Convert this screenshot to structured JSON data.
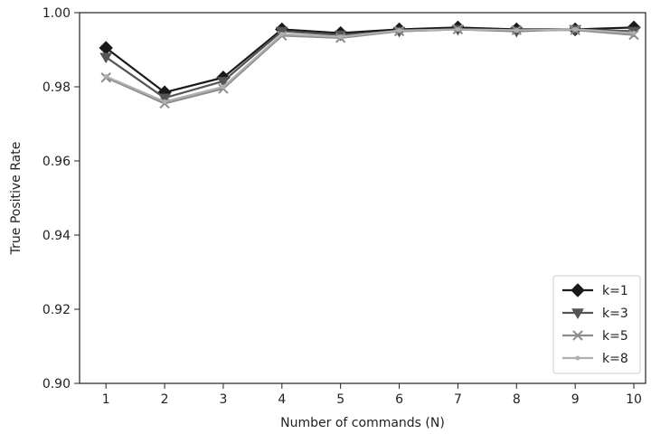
{
  "chart_data": {
    "type": "line",
    "title": "",
    "xlabel": "Number of commands (N)",
    "ylabel": "True Positive Rate",
    "x": [
      1,
      2,
      3,
      4,
      5,
      6,
      7,
      8,
      9,
      10
    ],
    "xlim": [
      0.55,
      10.2
    ],
    "ylim": [
      0.9,
      1.0
    ],
    "yticks": [
      0.9,
      0.92,
      0.94,
      0.96,
      0.98,
      1.0
    ],
    "ytick_labels": [
      "0.90",
      "0.92",
      "0.94",
      "0.96",
      "0.98",
      "1.00"
    ],
    "xtick_labels": [
      "1",
      "2",
      "3",
      "4",
      "5",
      "6",
      "7",
      "8",
      "9",
      "10"
    ],
    "grid": false,
    "legend_position": "lower-right",
    "series": [
      {
        "name": "k=1",
        "marker": "diamond",
        "color": "#1a1a1a",
        "values": [
          0.9905,
          0.9785,
          0.9825,
          0.9955,
          0.9945,
          0.9955,
          0.996,
          0.9955,
          0.9955,
          0.996
        ]
      },
      {
        "name": "k=3",
        "marker": "triangle-down",
        "color": "#555555",
        "values": [
          0.988,
          0.977,
          0.9815,
          0.995,
          0.994,
          0.995,
          0.9955,
          0.995,
          0.9955,
          0.995
        ]
      },
      {
        "name": "k=5",
        "marker": "x",
        "color": "#8c8c8c",
        "values": [
          0.9825,
          0.9755,
          0.9795,
          0.9938,
          0.9932,
          0.995,
          0.9955,
          0.9953,
          0.9953,
          0.994
        ]
      },
      {
        "name": "k=8",
        "marker": "dot",
        "color": "#b0b0b0",
        "values": [
          0.9828,
          0.976,
          0.98,
          0.9942,
          0.9935,
          0.9952,
          0.9955,
          0.9952,
          0.9955,
          0.9945
        ]
      }
    ]
  }
}
